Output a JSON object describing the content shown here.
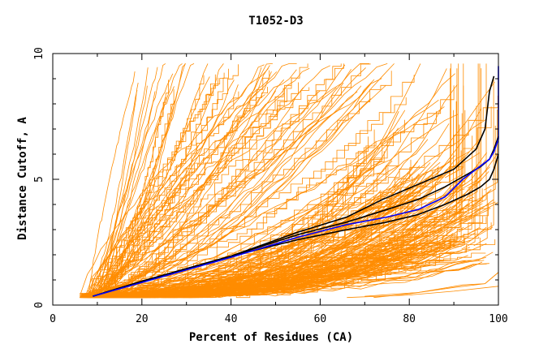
{
  "chart_data": {
    "type": "line",
    "title": "T1052-D3",
    "xlabel": "Percent of Residues (CA)",
    "ylabel": "Distance Cutoff, A",
    "xlim": [
      0,
      100
    ],
    "ylim": [
      0,
      10
    ],
    "xticks": [
      0,
      20,
      40,
      60,
      80,
      100
    ],
    "xtick_labels": [
      "0",
      "20",
      "40",
      "60",
      "80",
      "100"
    ],
    "yticks": [
      0,
      5,
      10
    ],
    "ytick_labels": [
      "0",
      "5",
      "10"
    ],
    "grid": false,
    "colors": {
      "background_models": "#ff8c00",
      "highlight_black": "#000000",
      "highlight_blue": "#0000ff"
    },
    "series": [
      {
        "color": "#000000",
        "x": [
          9,
          20,
          40,
          55,
          66,
          74,
          82,
          90,
          95,
          97,
          98,
          99
        ],
        "y": [
          0.35,
          0.95,
          1.95,
          2.9,
          3.5,
          4.2,
          4.8,
          5.4,
          6.2,
          7.0,
          8.5,
          9.1
        ]
      },
      {
        "color": "#000000",
        "x": [
          9,
          20,
          40,
          55,
          66,
          75,
          82,
          88,
          93,
          96,
          98,
          99,
          100
        ],
        "y": [
          0.35,
          0.95,
          1.95,
          2.8,
          3.3,
          3.8,
          4.2,
          4.7,
          5.2,
          5.5,
          5.8,
          6.2,
          6.7
        ]
      },
      {
        "color": "#000000",
        "x": [
          9,
          20,
          40,
          55,
          66,
          75,
          82,
          88,
          93,
          96,
          98,
          99,
          100
        ],
        "y": [
          0.35,
          0.95,
          1.95,
          2.6,
          3.0,
          3.3,
          3.6,
          4.0,
          4.4,
          4.7,
          5.0,
          5.4,
          6.0
        ]
      },
      {
        "color": "#0000ff",
        "x": [
          9,
          20,
          40,
          55,
          66,
          75,
          82,
          88,
          92,
          95,
          98,
          99,
          100,
          100
        ],
        "y": [
          0.35,
          0.9,
          1.9,
          2.7,
          3.2,
          3.5,
          3.8,
          4.3,
          5.0,
          5.4,
          5.8,
          6.1,
          6.6,
          9.5
        ]
      }
    ]
  }
}
